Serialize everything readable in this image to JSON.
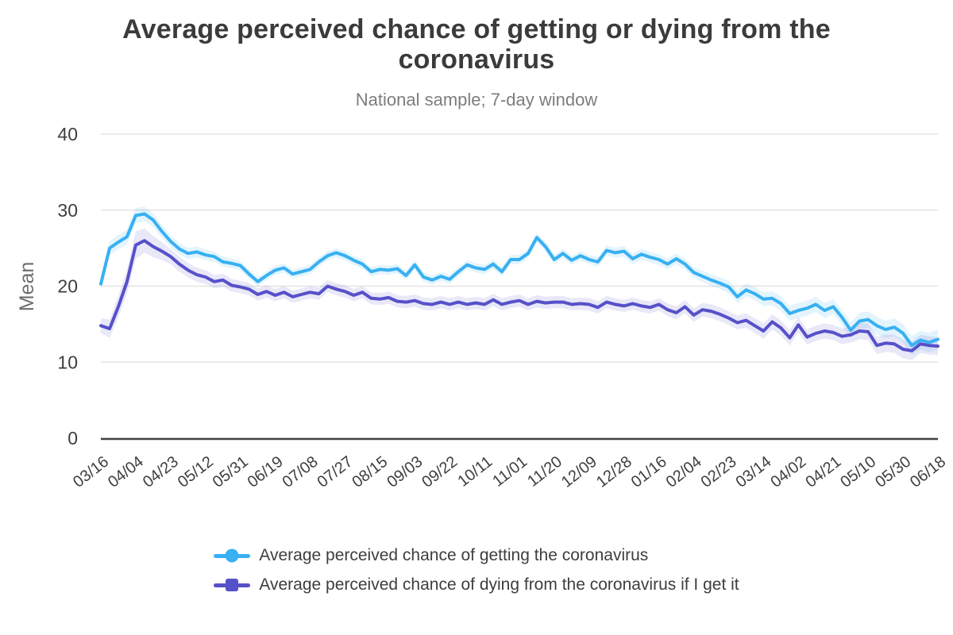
{
  "chart_data": {
    "type": "line",
    "title": "Average perceived chance of getting or dying from the coronavirus",
    "subtitle": "National sample; 7-day window",
    "ylabel": "Mean",
    "ylim": [
      0,
      40
    ],
    "yticks": [
      0,
      10,
      20,
      30,
      40
    ],
    "grid": "horizontal",
    "legend_position": "bottom",
    "axis_color": "#3f3f3f",
    "gridline_color": "#e4e4e4",
    "tick_label_color": "#3e3e3e",
    "categories": [
      "03/16",
      "04/04",
      "04/23",
      "05/12",
      "05/31",
      "06/19",
      "07/08",
      "07/27",
      "08/15",
      "09/03",
      "09/22",
      "10/11",
      "11/01",
      "11/20",
      "12/09",
      "12/28",
      "01/16",
      "02/04",
      "02/23",
      "03/14",
      "04/02",
      "04/21",
      "05/10",
      "05/30",
      "06/18"
    ],
    "points_per_tick_interval": 4,
    "series": [
      {
        "name": "Average perceived chance of getting the coronavirus",
        "color": "#38b0f2",
        "band_opacity": 0.14,
        "marker": "circle",
        "values": [
          20.3,
          25.0,
          25.8,
          26.5,
          29.3,
          29.5,
          28.7,
          27.2,
          25.9,
          24.9,
          24.3,
          24.5,
          24.1,
          23.9,
          23.2,
          23.0,
          22.7,
          21.6,
          20.6,
          21.4,
          22.1,
          22.4,
          21.6,
          21.9,
          22.2,
          23.2,
          24.0,
          24.4,
          24.0,
          23.4,
          22.9,
          21.9,
          22.2,
          22.1,
          22.3,
          21.4,
          22.8,
          21.2,
          20.8,
          21.3,
          20.9,
          21.9,
          22.8,
          22.4,
          22.2,
          22.9,
          21.9,
          23.5,
          23.5,
          24.3,
          26.4,
          25.2,
          23.5,
          24.3,
          23.4,
          24.0,
          23.5,
          23.2,
          24.7,
          24.4,
          24.6,
          23.6,
          24.2,
          23.8,
          23.5,
          22.9,
          23.6,
          22.9,
          21.8,
          21.3,
          20.8,
          20.4,
          19.9,
          18.6,
          19.5,
          19.0,
          18.3,
          18.4,
          17.7,
          16.4,
          16.8,
          17.1,
          17.6,
          16.8,
          17.3,
          15.9,
          14.2,
          15.4,
          15.6,
          14.8,
          14.3,
          14.6,
          13.8,
          12.2,
          12.9,
          12.6,
          13.0
        ],
        "ci_halfwidth_at_ticks": [
          0.9,
          1.0,
          0.8,
          0.7,
          0.6,
          0.6,
          0.6,
          0.6,
          0.6,
          0.6,
          0.6,
          0.6,
          0.6,
          0.6,
          0.6,
          0.7,
          0.7,
          0.7,
          0.8,
          0.9,
          1.0,
          1.0,
          1.1,
          1.2,
          1.3
        ]
      },
      {
        "name": "Average perceived chance of dying from the coronavirus if I get it",
        "color": "#5651c9",
        "band_opacity": 0.13,
        "marker": "square",
        "values": [
          14.8,
          14.4,
          17.3,
          20.6,
          25.4,
          26.0,
          25.2,
          24.6,
          23.9,
          22.9,
          22.1,
          21.5,
          21.2,
          20.6,
          20.8,
          20.1,
          19.9,
          19.6,
          18.9,
          19.3,
          18.8,
          19.2,
          18.6,
          18.9,
          19.2,
          19.0,
          20.0,
          19.6,
          19.3,
          18.8,
          19.2,
          18.4,
          18.3,
          18.5,
          18.0,
          17.9,
          18.1,
          17.7,
          17.6,
          17.9,
          17.6,
          17.9,
          17.6,
          17.8,
          17.6,
          18.2,
          17.6,
          17.9,
          18.1,
          17.6,
          18.0,
          17.8,
          17.9,
          17.9,
          17.6,
          17.7,
          17.6,
          17.2,
          17.9,
          17.6,
          17.4,
          17.7,
          17.4,
          17.2,
          17.6,
          16.9,
          16.5,
          17.3,
          16.2,
          16.9,
          16.7,
          16.3,
          15.8,
          15.2,
          15.5,
          14.8,
          14.1,
          15.3,
          14.5,
          13.2,
          14.9,
          13.3,
          13.8,
          14.1,
          13.9,
          13.4,
          13.6,
          14.1,
          14.0,
          12.2,
          12.5,
          12.4,
          11.7,
          11.5,
          12.4,
          12.2,
          12.1
        ],
        "ci_halfwidth_at_ticks": [
          1.0,
          1.8,
          1.0,
          0.9,
          0.8,
          0.8,
          0.8,
          0.8,
          0.8,
          0.8,
          0.8,
          0.8,
          0.8,
          0.8,
          0.8,
          0.8,
          0.8,
          0.9,
          0.9,
          1.0,
          1.0,
          1.0,
          1.1,
          1.2,
          1.2
        ]
      }
    ]
  }
}
